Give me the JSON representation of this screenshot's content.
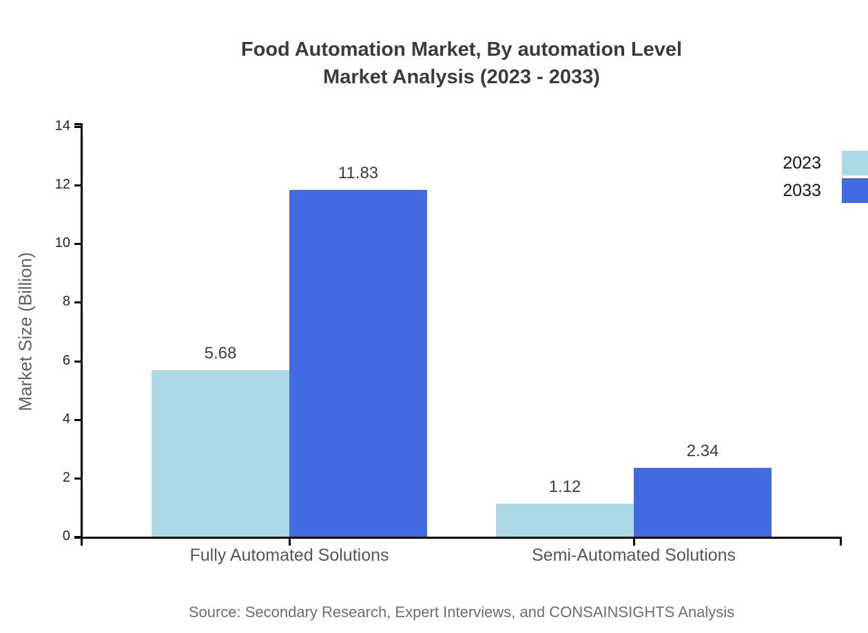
{
  "title": {
    "line1": "Food Automation Market, By automation Level",
    "line2": "Market Analysis (2023 - 2033)"
  },
  "chart_data": {
    "type": "bar",
    "categories": [
      "Fully Automated Solutions",
      "Semi-Automated Solutions"
    ],
    "series": [
      {
        "name": "2023",
        "color": "#ADD8E6",
        "values": [
          5.68,
          1.12
        ]
      },
      {
        "name": "2033",
        "color": "#4169E1",
        "values": [
          11.83,
          2.34
        ]
      }
    ],
    "title": "Food Automation Market, By automation Level Market Analysis (2023 - 2033)",
    "xlabel": "",
    "ylabel": "Market Size (Billion)",
    "ylim": [
      0,
      14
    ],
    "yticks": [
      0,
      2,
      4,
      6,
      8,
      10,
      12,
      14
    ],
    "grid": false,
    "legend_position": "top-right",
    "value_labels": true,
    "value_label_format": "2dp"
  },
  "colors": {
    "series_2023": "#ADD8E6",
    "series_2033": "#4169E1",
    "axis": "#000000",
    "title_text": "#3b3b3b",
    "category_text": "#565656",
    "source_text": "#6e6e6e"
  },
  "source_note": "Source: Secondary Research, Expert Interviews, and CONSAINSIGHTS Analysis"
}
